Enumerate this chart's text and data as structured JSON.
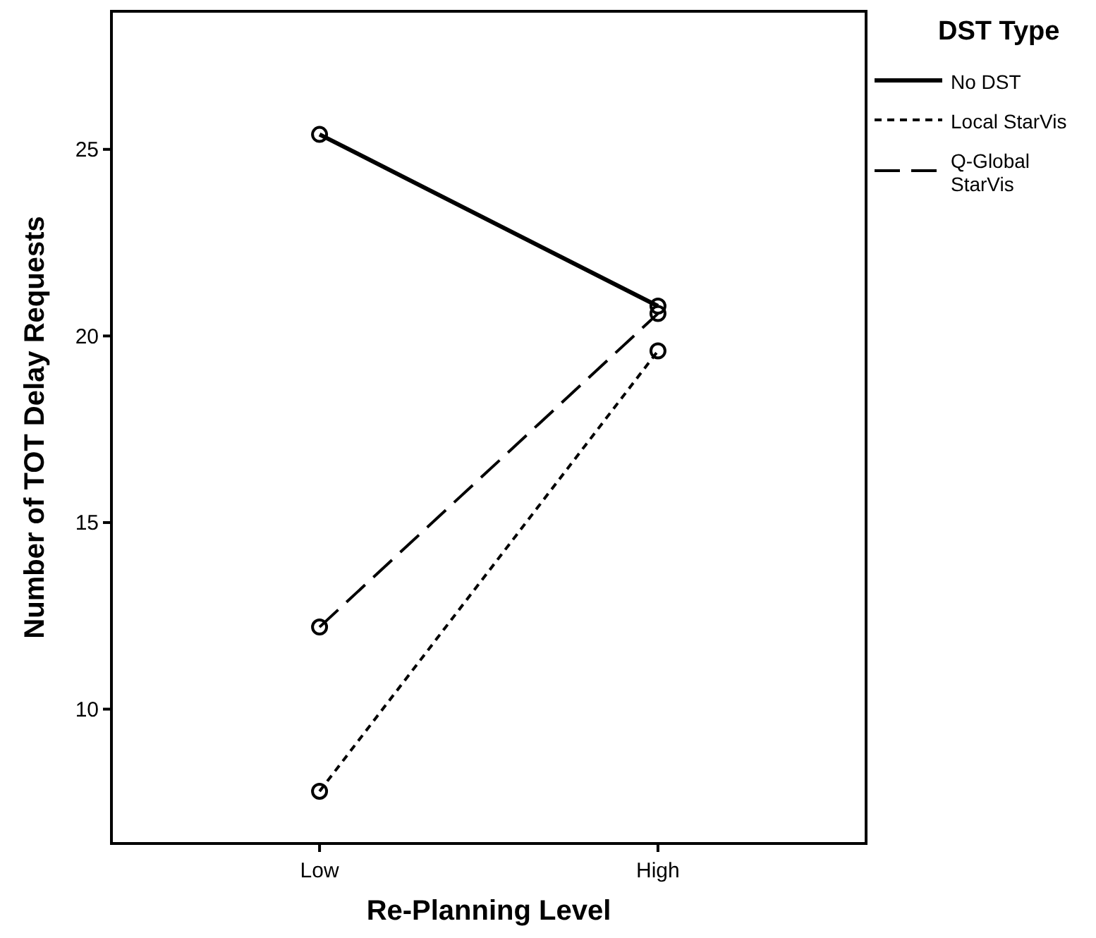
{
  "chart_data": {
    "type": "line",
    "xlabel": "Re-Planning Level",
    "ylabel": "Number of TOT Delay Requests",
    "legend_title": "DST Type",
    "legend": "top right",
    "marker": "circle",
    "grid": false,
    "categories": [
      "Low",
      "High"
    ],
    "ylim": [
      6.4,
      28.7
    ],
    "yticks": [
      10,
      15,
      20,
      25
    ],
    "series": [
      {
        "name": "No DST",
        "color": "#000000",
        "line_style": "solid",
        "values": [
          25.4,
          20.8
        ]
      },
      {
        "name": "Local StarVis",
        "color": "#000000",
        "line_style": "dotted",
        "values": [
          7.8,
          19.6
        ]
      },
      {
        "name": "Q-Global StarVis",
        "color": "#000000",
        "line_style": "dashed",
        "values": [
          12.2,
          20.6
        ]
      }
    ]
  }
}
